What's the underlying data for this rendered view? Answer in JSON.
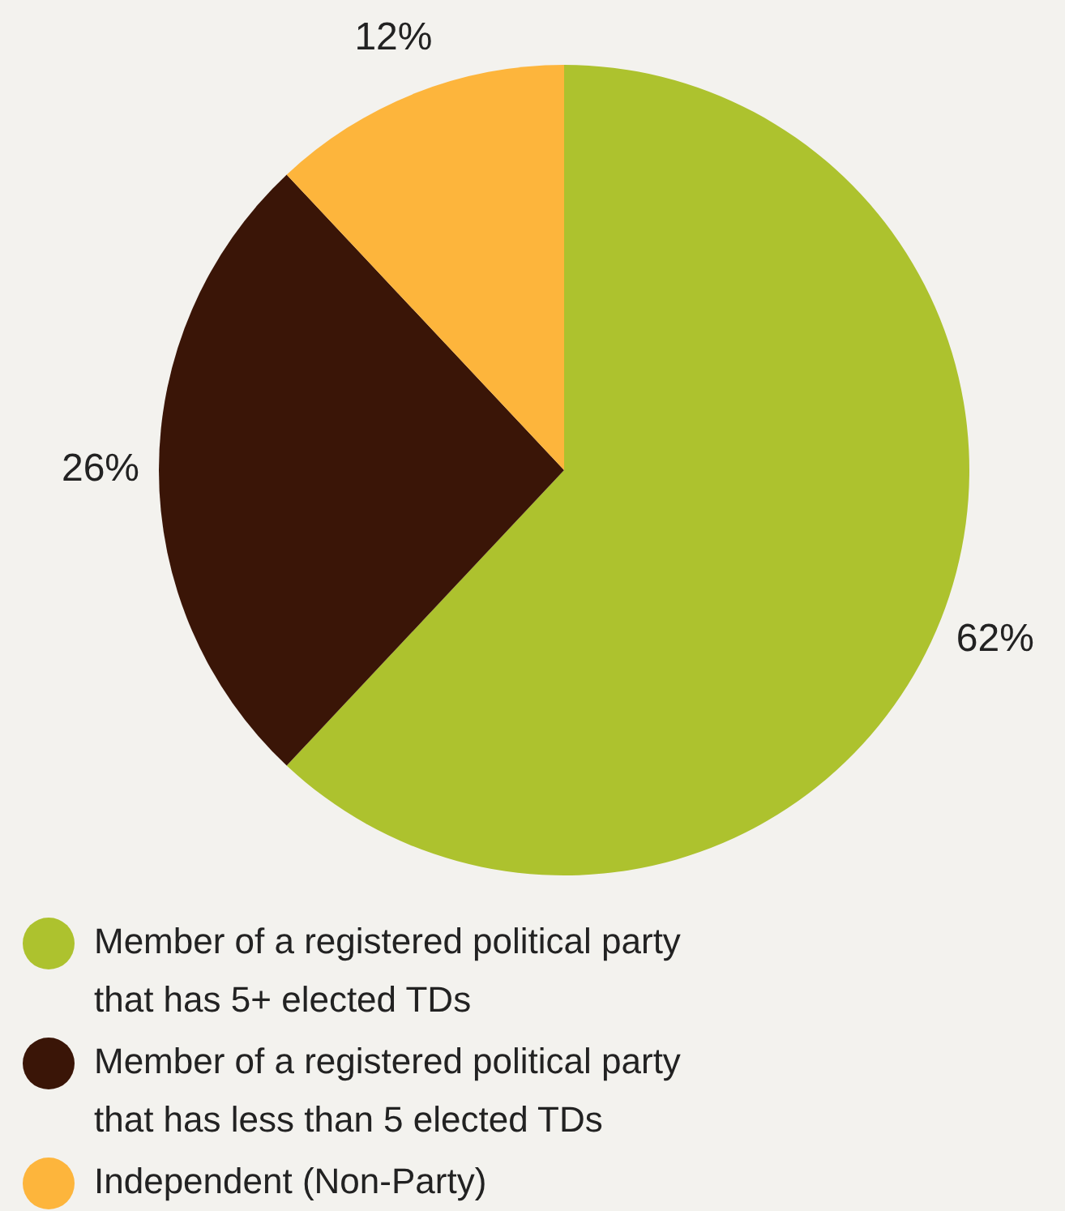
{
  "chart_data": {
    "type": "pie",
    "categories": [
      "Member of a registered political party that has 5+ elected TDs",
      "Member of a registered political party that has less than 5 elected TDs",
      "Independent (Non-Party)"
    ],
    "values": [
      62,
      26,
      12
    ],
    "colors": [
      "#adc22e",
      "#3a1507",
      "#fdb53c"
    ],
    "value_labels": [
      "62%",
      "26%",
      "12%"
    ],
    "legend": "bottom left"
  }
}
